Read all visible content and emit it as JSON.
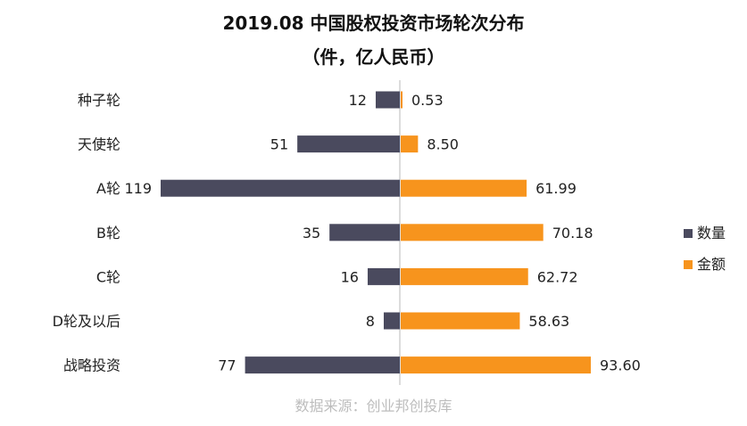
{
  "chart_data": {
    "type": "bar",
    "orientation": "horizontal-diverging",
    "title": "2019.08 中国股权投资市场轮次分布",
    "subtitle": "（件，亿人民币）",
    "categories": [
      "种子轮",
      "天使轮",
      "A轮",
      "B轮",
      "C轮",
      "D轮及以后",
      "战略投资"
    ],
    "series": [
      {
        "name": "数量",
        "values": [
          12,
          51,
          119,
          35,
          16,
          8,
          77
        ],
        "labels": [
          "12",
          "51",
          "119",
          "35",
          "16",
          "8",
          "77"
        ],
        "color": "#4a4a5e"
      },
      {
        "name": "金额",
        "values": [
          0.53,
          8.5,
          61.99,
          70.18,
          62.72,
          58.63,
          93.6
        ],
        "labels": [
          "0.53",
          "8.50",
          "61.99",
          "70.18",
          "62.72",
          "58.63",
          "93.60"
        ],
        "color": "#f7941d"
      }
    ],
    "legend_position": "right",
    "grid": false,
    "source": "数据来源：创业邦创投库"
  }
}
